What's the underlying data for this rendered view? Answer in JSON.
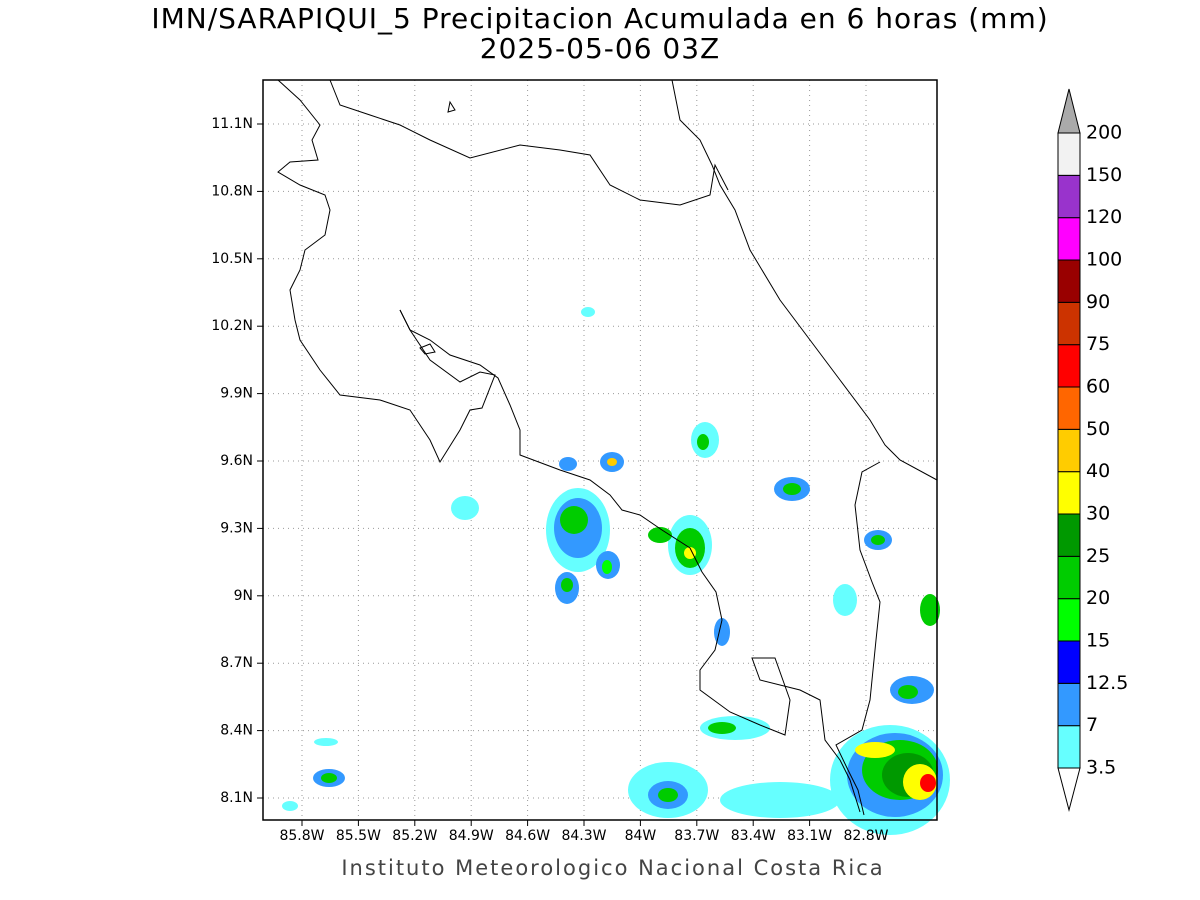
{
  "title": "IMN/SARAPIQUI_5 Precipitacion Acumulada en 6 horas (mm)",
  "subtitle": "2025-05-06 03Z",
  "map": {
    "lat_labels": [
      "11.1N",
      "10.8N",
      "10.5N",
      "10.2N",
      "9.9N",
      "9.6N",
      "9.3N",
      "9N",
      "8.7N",
      "8.4N",
      "8.1N"
    ],
    "lon_labels": [
      "85.8W",
      "85.5W",
      "85.2W",
      "84.9W",
      "84.6W",
      "84.3W",
      "84W",
      "83.7W",
      "83.4W",
      "83.1W",
      "82.8W"
    ]
  },
  "colorbar": {
    "labels": [
      "3.5",
      "7",
      "12.5",
      "15",
      "20",
      "25",
      "30",
      "40",
      "50",
      "60",
      "75",
      "90",
      "100",
      "120",
      "150",
      "200"
    ],
    "colors": [
      "#66ffff",
      "#3399ff",
      "#0000ff",
      "#00ff00",
      "#00cc00",
      "#009900",
      "#ffff00",
      "#ffcc00",
      "#ff6600",
      "#ff0000",
      "#cc3300",
      "#990000",
      "#ff00ff",
      "#9933cc",
      "#f2f2f2"
    ],
    "over_color": "#aaaaaa",
    "under_color": "#ffffff"
  },
  "footer": "Instituto Meteorologico Nacional Costa Rica"
}
